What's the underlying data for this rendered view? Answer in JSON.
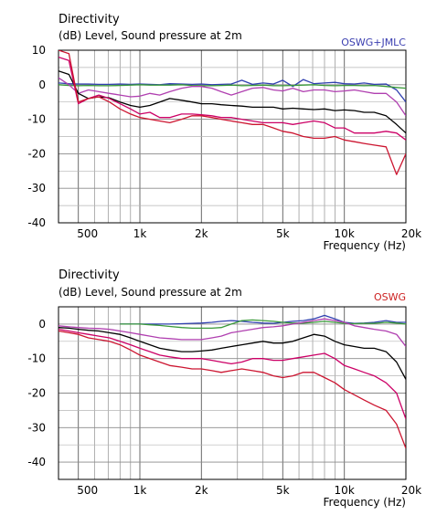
{
  "chart_data": [
    {
      "type": "line",
      "title": "Directivity",
      "subtitle": "(dB)  Level, Sound pressure at 2m",
      "label": "OSWG+JMLC",
      "label_color": "#3b3fb0",
      "xlabel": "Frequency  (Hz)",
      "xscale": "log",
      "xlim": [
        400,
        20000
      ],
      "ylim": [
        -40,
        10
      ],
      "yticks": [
        10,
        0,
        -10,
        -20,
        -30,
        -40
      ],
      "ytick_labels": [
        "10",
        "0",
        "-10",
        "-20",
        "-30",
        "-40"
      ],
      "xticks": [
        500,
        1000,
        2000,
        5000,
        10000,
        20000
      ],
      "xtick_labels": [
        "500",
        "1k",
        "2k",
        "5k",
        "10k",
        "20k"
      ],
      "grid": true,
      "x": [
        400,
        450,
        500,
        560,
        630,
        710,
        800,
        900,
        1000,
        1120,
        1250,
        1400,
        1600,
        1800,
        2000,
        2250,
        2500,
        2800,
        3150,
        3550,
        4000,
        4500,
        5000,
        5600,
        6300,
        7100,
        8000,
        9000,
        10000,
        11200,
        12500,
        14000,
        16000,
        18000,
        20000
      ],
      "series": [
        {
          "color": "#3040b0",
          "values": [
            0.5,
            0.3,
            0.2,
            0.2,
            0.1,
            0.1,
            0.2,
            0.1,
            0.2,
            0.1,
            0.0,
            0.3,
            0.2,
            0.1,
            0.2,
            0.0,
            0.1,
            0.2,
            1.3,
            0.1,
            0.5,
            0.2,
            1.3,
            -0.5,
            1.5,
            0.3,
            0.5,
            0.7,
            0.3,
            0.2,
            0.5,
            0.1,
            0.2,
            -1.5,
            -5
          ]
        },
        {
          "color": "#3a9a3a",
          "values": [
            0.0,
            -0.2,
            -0.3,
            -0.2,
            -0.3,
            -0.3,
            -0.2,
            -0.1,
            0.0,
            -0.1,
            -0.1,
            -0.1,
            0.0,
            -0.2,
            -0.3,
            -0.3,
            -0.2,
            -0.1,
            -0.3,
            -0.2,
            -0.1,
            -0.3,
            -0.3,
            -0.2,
            -0.1,
            0.0,
            -0.2,
            -0.3,
            -0.2,
            -0.2,
            -0.3,
            -0.2,
            -0.5,
            -0.8,
            -1
          ]
        },
        {
          "color": "#b03fb0",
          "values": [
            2,
            0,
            -2.5,
            -1.5,
            -2,
            -2.5,
            -3,
            -3.5,
            -3.3,
            -2.5,
            -3,
            -2,
            -1,
            -0.5,
            -0.5,
            -1,
            -2,
            -3,
            -2,
            -1,
            -0.8,
            -1.5,
            -1.8,
            -1,
            -2,
            -1.5,
            -1.5,
            -2,
            -1.8,
            -1.5,
            -2,
            -2.5,
            -2.5,
            -5,
            -9
          ]
        },
        {
          "color": "#000000",
          "values": [
            4,
            3,
            -2.5,
            -4,
            -3.5,
            -3.8,
            -5,
            -6,
            -6.5,
            -6,
            -5,
            -4,
            -4.5,
            -5,
            -5.5,
            -5.5,
            -5.8,
            -6,
            -6.2,
            -6.5,
            -6.5,
            -6.5,
            -7,
            -6.8,
            -7,
            -7.2,
            -7,
            -7.5,
            -7.3,
            -7.5,
            -8,
            -8,
            -9,
            -11.5,
            -14
          ]
        },
        {
          "color": "#cc0066",
          "values": [
            8,
            7,
            -5.5,
            -4,
            -3,
            -4,
            -5.5,
            -7,
            -8.5,
            -8,
            -9.5,
            -9.5,
            -8.5,
            -8.5,
            -8.7,
            -9,
            -9.5,
            -9.5,
            -10,
            -10.5,
            -11,
            -11,
            -11,
            -11.5,
            -11,
            -10.5,
            -11,
            -12.5,
            -12.5,
            -14,
            -14,
            -14,
            -13.5,
            -14,
            -16
          ]
        },
        {
          "color": "#cc1530",
          "values": [
            10,
            9,
            -5,
            -4,
            -3.5,
            -5,
            -7,
            -8.5,
            -9.5,
            -10,
            -10.5,
            -11,
            -10,
            -9,
            -9,
            -9.5,
            -10,
            -10.5,
            -11,
            -11.5,
            -11.5,
            -12.5,
            -13.5,
            -14,
            -15,
            -15.5,
            -15.5,
            -15,
            -16,
            -16.5,
            -17,
            -17.5,
            -18,
            -26,
            -20
          ]
        }
      ]
    },
    {
      "type": "line",
      "title": "Directivity",
      "subtitle": "(dB)  Level, Sound pressure at 2m",
      "label": "OSWG",
      "label_color": "#cc2020",
      "xlabel": "Frequency  (Hz)",
      "xscale": "log",
      "xlim": [
        400,
        20000
      ],
      "ylim": [
        -45,
        5
      ],
      "yticks": [
        0,
        -10,
        -20,
        -30,
        -40
      ],
      "ytick_labels": [
        "0",
        "-10",
        "-20",
        "-30",
        "-40"
      ],
      "xticks": [
        500,
        1000,
        2000,
        5000,
        10000,
        20000
      ],
      "xtick_labels": [
        "500",
        "1k",
        "2k",
        "5k",
        "10k",
        "20k"
      ],
      "grid": true,
      "x": [
        400,
        450,
        500,
        560,
        630,
        710,
        800,
        900,
        1000,
        1120,
        1250,
        1400,
        1600,
        1800,
        2000,
        2250,
        2500,
        2800,
        3150,
        3550,
        4000,
        4500,
        5000,
        5600,
        6300,
        7100,
        8000,
        9000,
        10000,
        11200,
        12500,
        14000,
        16000,
        18000,
        20000
      ],
      "series": [
        {
          "color": "#3040b0",
          "values": [
            null,
            null,
            null,
            null,
            null,
            null,
            0,
            0,
            0,
            0,
            0,
            0,
            0.1,
            0.2,
            0.3,
            0.5,
            0.8,
            1.0,
            0.8,
            0.5,
            0.3,
            0.2,
            0.5,
            0.8,
            1.0,
            1.5,
            2.5,
            1.5,
            0.5,
            0.2,
            0.3,
            0.5,
            1.0,
            0.5,
            0.5
          ]
        },
        {
          "color": "#3a9a3a",
          "values": [
            null,
            null,
            null,
            null,
            null,
            null,
            0,
            0,
            0,
            -0.2,
            -0.4,
            -0.7,
            -1.0,
            -1.2,
            -1.2,
            -1.2,
            -1.0,
            0.0,
            1.0,
            1.2,
            1.0,
            0.8,
            0.5,
            0.3,
            0.3,
            0.5,
            0.8,
            0.5,
            0.2,
            0.1,
            0.2,
            0.2,
            0.5,
            0.3,
            0
          ]
        },
        {
          "color": "#b03fb0",
          "values": [
            -0.5,
            -0.8,
            -1.0,
            -1.2,
            -1.3,
            -1.5,
            -2.0,
            -2.5,
            -3.0,
            -3.5,
            -4.0,
            -4.2,
            -4.5,
            -4.5,
            -4.5,
            -4.0,
            -3.5,
            -2.5,
            -2.0,
            -1.5,
            -1.0,
            -0.8,
            -0.5,
            0.0,
            0.5,
            1.0,
            1.5,
            1.0,
            0.5,
            -0.5,
            -1.0,
            -1.5,
            -2.0,
            -3.0,
            -6.5
          ]
        },
        {
          "color": "#000000",
          "values": [
            -1.0,
            -1.2,
            -1.5,
            -1.8,
            -2.0,
            -2.5,
            -3.0,
            -4.0,
            -5.0,
            -6.0,
            -7.0,
            -7.5,
            -8.0,
            -8.0,
            -7.8,
            -7.5,
            -7.0,
            -6.5,
            -6.0,
            -5.5,
            -5.0,
            -5.5,
            -5.5,
            -5.0,
            -4.0,
            -3.0,
            -3.5,
            -5.0,
            -6.0,
            -6.5,
            -7.0,
            -7.0,
            -8.0,
            -11.0,
            -16.0
          ]
        },
        {
          "color": "#cc0066",
          "values": [
            -1.5,
            -2.0,
            -2.5,
            -3.0,
            -3.5,
            -4.0,
            -5.0,
            -6.0,
            -7.0,
            -8.0,
            -9.0,
            -9.5,
            -10.0,
            -10.0,
            -10.0,
            -10.5,
            -11.0,
            -11.5,
            -11.0,
            -10.0,
            -10.0,
            -10.5,
            -10.5,
            -10.0,
            -9.5,
            -9.0,
            -8.5,
            -10.0,
            -12.0,
            -13.0,
            -14.0,
            -15.0,
            -17.0,
            -20.0,
            -27.5
          ]
        },
        {
          "color": "#cc1530",
          "values": [
            -2.0,
            -2.5,
            -3.0,
            -4.0,
            -4.5,
            -5.0,
            -6.0,
            -7.5,
            -9.0,
            -10.0,
            -11.0,
            -12.0,
            -12.5,
            -13.0,
            -13.0,
            -13.5,
            -14.0,
            -13.5,
            -13.0,
            -13.5,
            -14.0,
            -15.0,
            -15.5,
            -15.0,
            -14.0,
            -14.0,
            -15.5,
            -17.0,
            -19.0,
            -20.5,
            -22.0,
            -23.5,
            -25.0,
            -29.0,
            -36.0
          ]
        }
      ]
    }
  ]
}
